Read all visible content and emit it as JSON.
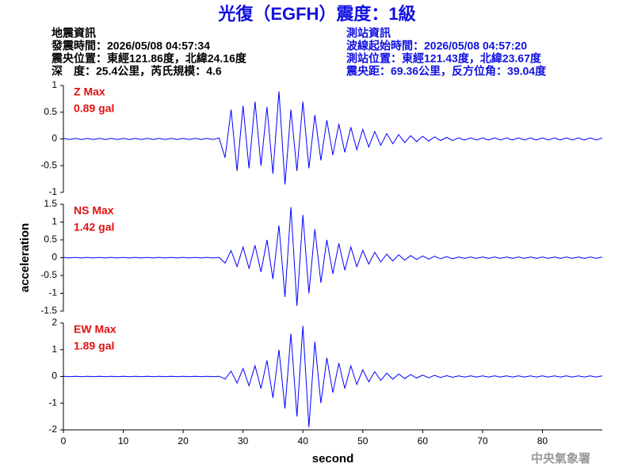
{
  "header": {
    "title": "光復（EGFH）震度：1級",
    "quake_info": [
      "地震資訊",
      "發震時間：2026/05/08 04:57:34",
      "震央位置：東經121.86度，北緯24.16度",
      "深　度：25.4公里，芮氏規模：4.6"
    ],
    "station_info": [
      "測站資訊",
      "波線起始時間：2026/05/08 04:57:20",
      "測站位置：東經121.43度，北緯23.67度",
      "震央距：69.36公里，反方位角：39.04度"
    ]
  },
  "footer": "中央氣象署",
  "chart_data": [
    {
      "type": "line",
      "color": "#0000ff",
      "annotations": [
        "Z Max",
        "0.89 gal"
      ],
      "xlim": [
        0,
        90
      ],
      "ylim": [
        -1,
        1
      ],
      "yticks": [
        -1,
        -0.5,
        0,
        0.5,
        1
      ],
      "x": [
        0,
        1,
        2,
        3,
        4,
        5,
        6,
        7,
        8,
        9,
        10,
        11,
        12,
        13,
        14,
        15,
        16,
        17,
        18,
        19,
        20,
        21,
        22,
        23,
        24,
        25,
        26,
        27,
        28,
        29,
        30,
        31,
        32,
        33,
        34,
        35,
        36,
        37,
        38,
        39,
        40,
        41,
        42,
        43,
        44,
        45,
        46,
        47,
        48,
        49,
        50,
        51,
        52,
        53,
        54,
        55,
        56,
        57,
        58,
        59,
        60,
        61,
        62,
        63,
        64,
        65,
        66,
        67,
        68,
        69,
        70,
        71,
        72,
        73,
        74,
        75,
        76,
        77,
        78,
        79,
        80,
        81,
        82,
        83,
        84,
        85,
        86,
        87,
        88,
        89,
        90
      ],
      "values": [
        0.01,
        -0.01,
        0.01,
        -0.01,
        0.01,
        -0.01,
        0.01,
        -0.01,
        0.01,
        -0.01,
        0.01,
        -0.01,
        0.01,
        -0.01,
        0.01,
        -0.01,
        0.01,
        -0.01,
        0.01,
        -0.01,
        0.01,
        -0.01,
        0.01,
        -0.01,
        0.01,
        -0.01,
        0.02,
        -0.35,
        0.55,
        -0.6,
        0.62,
        -0.55,
        0.7,
        -0.5,
        0.6,
        -0.65,
        0.89,
        -0.85,
        0.55,
        -0.6,
        0.7,
        -0.55,
        0.45,
        -0.4,
        0.35,
        -0.3,
        0.28,
        -0.25,
        0.22,
        -0.2,
        0.18,
        -0.15,
        0.14,
        -0.12,
        0.1,
        -0.09,
        0.08,
        -0.07,
        0.06,
        -0.05,
        0.05,
        -0.04,
        0.04,
        -0.03,
        0.03,
        -0.03,
        0.02,
        -0.02,
        0.02,
        -0.02,
        0.02,
        -0.02,
        0.02,
        -0.02,
        0.02,
        -0.02,
        0.02,
        -0.02,
        0.02,
        -0.02,
        0.02,
        -0.02,
        0.02,
        -0.02,
        0.02,
        -0.02,
        0.02,
        -0.02,
        0.02,
        -0.02,
        0.02
      ]
    },
    {
      "type": "line",
      "color": "#0000ff",
      "annotations": [
        "NS Max",
        "1.42 gal"
      ],
      "ylabel": "acceleration",
      "xlim": [
        0,
        90
      ],
      "ylim": [
        -1.5,
        1.5
      ],
      "yticks": [
        -1.5,
        -1,
        -0.5,
        0,
        0.5,
        1,
        1.5
      ],
      "x": [
        0,
        1,
        2,
        3,
        4,
        5,
        6,
        7,
        8,
        9,
        10,
        11,
        12,
        13,
        14,
        15,
        16,
        17,
        18,
        19,
        20,
        21,
        22,
        23,
        24,
        25,
        26,
        27,
        28,
        29,
        30,
        31,
        32,
        33,
        34,
        35,
        36,
        37,
        38,
        39,
        40,
        41,
        42,
        43,
        44,
        45,
        46,
        47,
        48,
        49,
        50,
        51,
        52,
        53,
        54,
        55,
        56,
        57,
        58,
        59,
        60,
        61,
        62,
        63,
        64,
        65,
        66,
        67,
        68,
        69,
        70,
        71,
        72,
        73,
        74,
        75,
        76,
        77,
        78,
        79,
        80,
        81,
        82,
        83,
        84,
        85,
        86,
        87,
        88,
        89,
        90
      ],
      "values": [
        0.01,
        -0.01,
        0.01,
        -0.01,
        0.01,
        -0.01,
        0.01,
        -0.01,
        0.01,
        -0.01,
        0.01,
        -0.01,
        0.01,
        -0.01,
        0.01,
        -0.01,
        0.01,
        -0.01,
        0.01,
        -0.01,
        0.01,
        -0.01,
        0.01,
        -0.01,
        0.01,
        -0.01,
        0.01,
        -0.15,
        0.2,
        -0.25,
        0.3,
        -0.3,
        0.35,
        -0.4,
        0.5,
        -0.6,
        0.9,
        -1.1,
        1.42,
        -1.35,
        1.2,
        -1.0,
        0.8,
        -0.7,
        0.5,
        -0.45,
        0.4,
        -0.35,
        0.3,
        -0.25,
        0.2,
        -0.18,
        0.15,
        -0.12,
        0.1,
        -0.09,
        0.08,
        -0.07,
        0.06,
        -0.05,
        0.05,
        -0.04,
        0.04,
        -0.03,
        0.03,
        -0.03,
        0.02,
        -0.02,
        0.02,
        -0.02,
        0.02,
        -0.02,
        0.02,
        -0.02,
        0.02,
        -0.02,
        0.02,
        -0.02,
        0.02,
        -0.02,
        0.02,
        -0.02,
        0.02,
        -0.02,
        0.02,
        -0.02,
        0.02,
        -0.02,
        0.02,
        -0.02,
        0.02
      ]
    },
    {
      "type": "line",
      "color": "#0000ff",
      "annotations": [
        "EW Max",
        "1.89 gal"
      ],
      "xlabel": "second",
      "xlim": [
        0,
        90
      ],
      "xticks": [
        0,
        10,
        20,
        30,
        40,
        50,
        60,
        70,
        80
      ],
      "ylim": [
        -2,
        2
      ],
      "yticks": [
        -2,
        -1,
        0,
        1,
        2
      ],
      "x": [
        0,
        1,
        2,
        3,
        4,
        5,
        6,
        7,
        8,
        9,
        10,
        11,
        12,
        13,
        14,
        15,
        16,
        17,
        18,
        19,
        20,
        21,
        22,
        23,
        24,
        25,
        26,
        27,
        28,
        29,
        30,
        31,
        32,
        33,
        34,
        35,
        36,
        37,
        38,
        39,
        40,
        41,
        42,
        43,
        44,
        45,
        46,
        47,
        48,
        49,
        50,
        51,
        52,
        53,
        54,
        55,
        56,
        57,
        58,
        59,
        60,
        61,
        62,
        63,
        64,
        65,
        66,
        67,
        68,
        69,
        70,
        71,
        72,
        73,
        74,
        75,
        76,
        77,
        78,
        79,
        80,
        81,
        82,
        83,
        84,
        85,
        86,
        87,
        88,
        89,
        90
      ],
      "values": [
        0.01,
        -0.01,
        0.01,
        -0.01,
        0.01,
        -0.01,
        0.01,
        -0.01,
        0.01,
        -0.01,
        0.01,
        -0.01,
        0.01,
        -0.01,
        0.01,
        -0.01,
        0.01,
        -0.01,
        0.01,
        -0.01,
        0.01,
        -0.01,
        0.01,
        -0.01,
        0.01,
        -0.01,
        0.01,
        -0.1,
        0.2,
        -0.25,
        0.3,
        -0.35,
        0.4,
        -0.45,
        0.6,
        -0.8,
        1.0,
        -1.2,
        1.6,
        -1.5,
        1.89,
        -1.9,
        1.3,
        -1.0,
        0.7,
        -0.6,
        0.5,
        -0.45,
        0.4,
        -0.3,
        0.25,
        -0.2,
        0.18,
        -0.15,
        0.12,
        -0.1,
        0.09,
        -0.08,
        0.07,
        -0.06,
        0.05,
        -0.05,
        0.04,
        -0.04,
        0.03,
        -0.03,
        0.02,
        -0.02,
        0.02,
        -0.02,
        0.02,
        -0.02,
        0.02,
        -0.02,
        0.02,
        -0.02,
        0.02,
        -0.02,
        0.02,
        -0.02,
        0.02,
        -0.02,
        0.02,
        -0.02,
        0.02,
        -0.02,
        0.02,
        -0.02,
        0.02,
        -0.02,
        0.02
      ]
    }
  ]
}
